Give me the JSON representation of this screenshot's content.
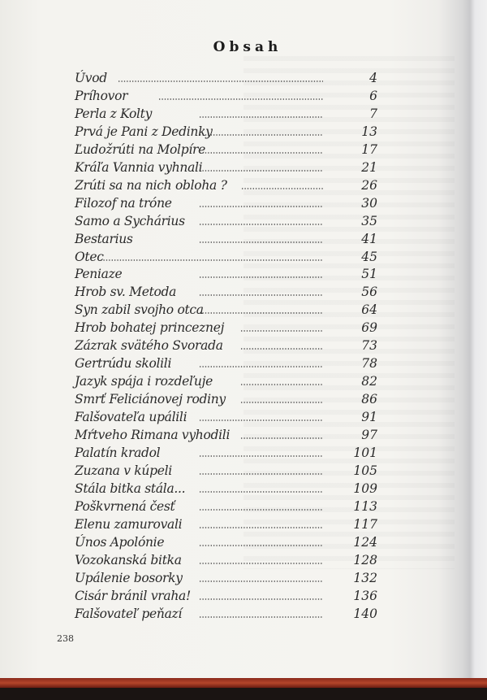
{
  "title": "Obsah",
  "entries": [
    {
      "label": "Úvod",
      "page": "4"
    },
    {
      "label": "Príhovor",
      "page": "6"
    },
    {
      "label": "Perla z Kolty",
      "page": "7"
    },
    {
      "label": "Prvá je Pani z Dedinky",
      "page": "13"
    },
    {
      "label": "Ľudožrúti na Molpíre",
      "page": "17"
    },
    {
      "label": "Kráľa Vannia vyhnali",
      "page": "21"
    },
    {
      "label": "Zrúti sa na nich obloha ?",
      "page": "26"
    },
    {
      "label": "Filozof na tróne",
      "page": "30"
    },
    {
      "label": "Samo a Sychárius",
      "page": "35"
    },
    {
      "label": "Bestarius",
      "page": "41"
    },
    {
      "label": "Otec",
      "page": "45"
    },
    {
      "label": "Peniaze",
      "page": "51"
    },
    {
      "label": "Hrob sv. Metoda",
      "page": "56"
    },
    {
      "label": "Syn zabil svojho otca",
      "page": "64"
    },
    {
      "label": "Hrob bohatej princeznej",
      "page": "69"
    },
    {
      "label": "Zázrak svätého Svorada",
      "page": "73"
    },
    {
      "label": "Gertrúdu skolili",
      "page": "78"
    },
    {
      "label": "Jazyk spája i rozdeľuje",
      "page": "82"
    },
    {
      "label": "Smrť Feliciánovej rodiny",
      "page": "86"
    },
    {
      "label": "Falšovateľa upálili",
      "page": "91"
    },
    {
      "label": "Mŕtveho Rimana vyhodili",
      "page": "97"
    },
    {
      "label": "Palatín kradol",
      "page": "101"
    },
    {
      "label": "Zuzana v kúpeli",
      "page": "105"
    },
    {
      "label": "Stála bitka stála...",
      "page": "109"
    },
    {
      "label": "Poškvrnená česť",
      "page": "113"
    },
    {
      "label": "Elenu zamurovali",
      "page": "117"
    },
    {
      "label": "Únos Apolónie",
      "page": "124"
    },
    {
      "label": "Vozokanská bitka",
      "page": "128"
    },
    {
      "label": "Upálenie bosorky",
      "page": "132"
    },
    {
      "label": "Cisár bránil vraha!",
      "page": "136"
    },
    {
      "label": "Falšovateľ peňazí",
      "page": "140"
    }
  ],
  "page_number": "238"
}
